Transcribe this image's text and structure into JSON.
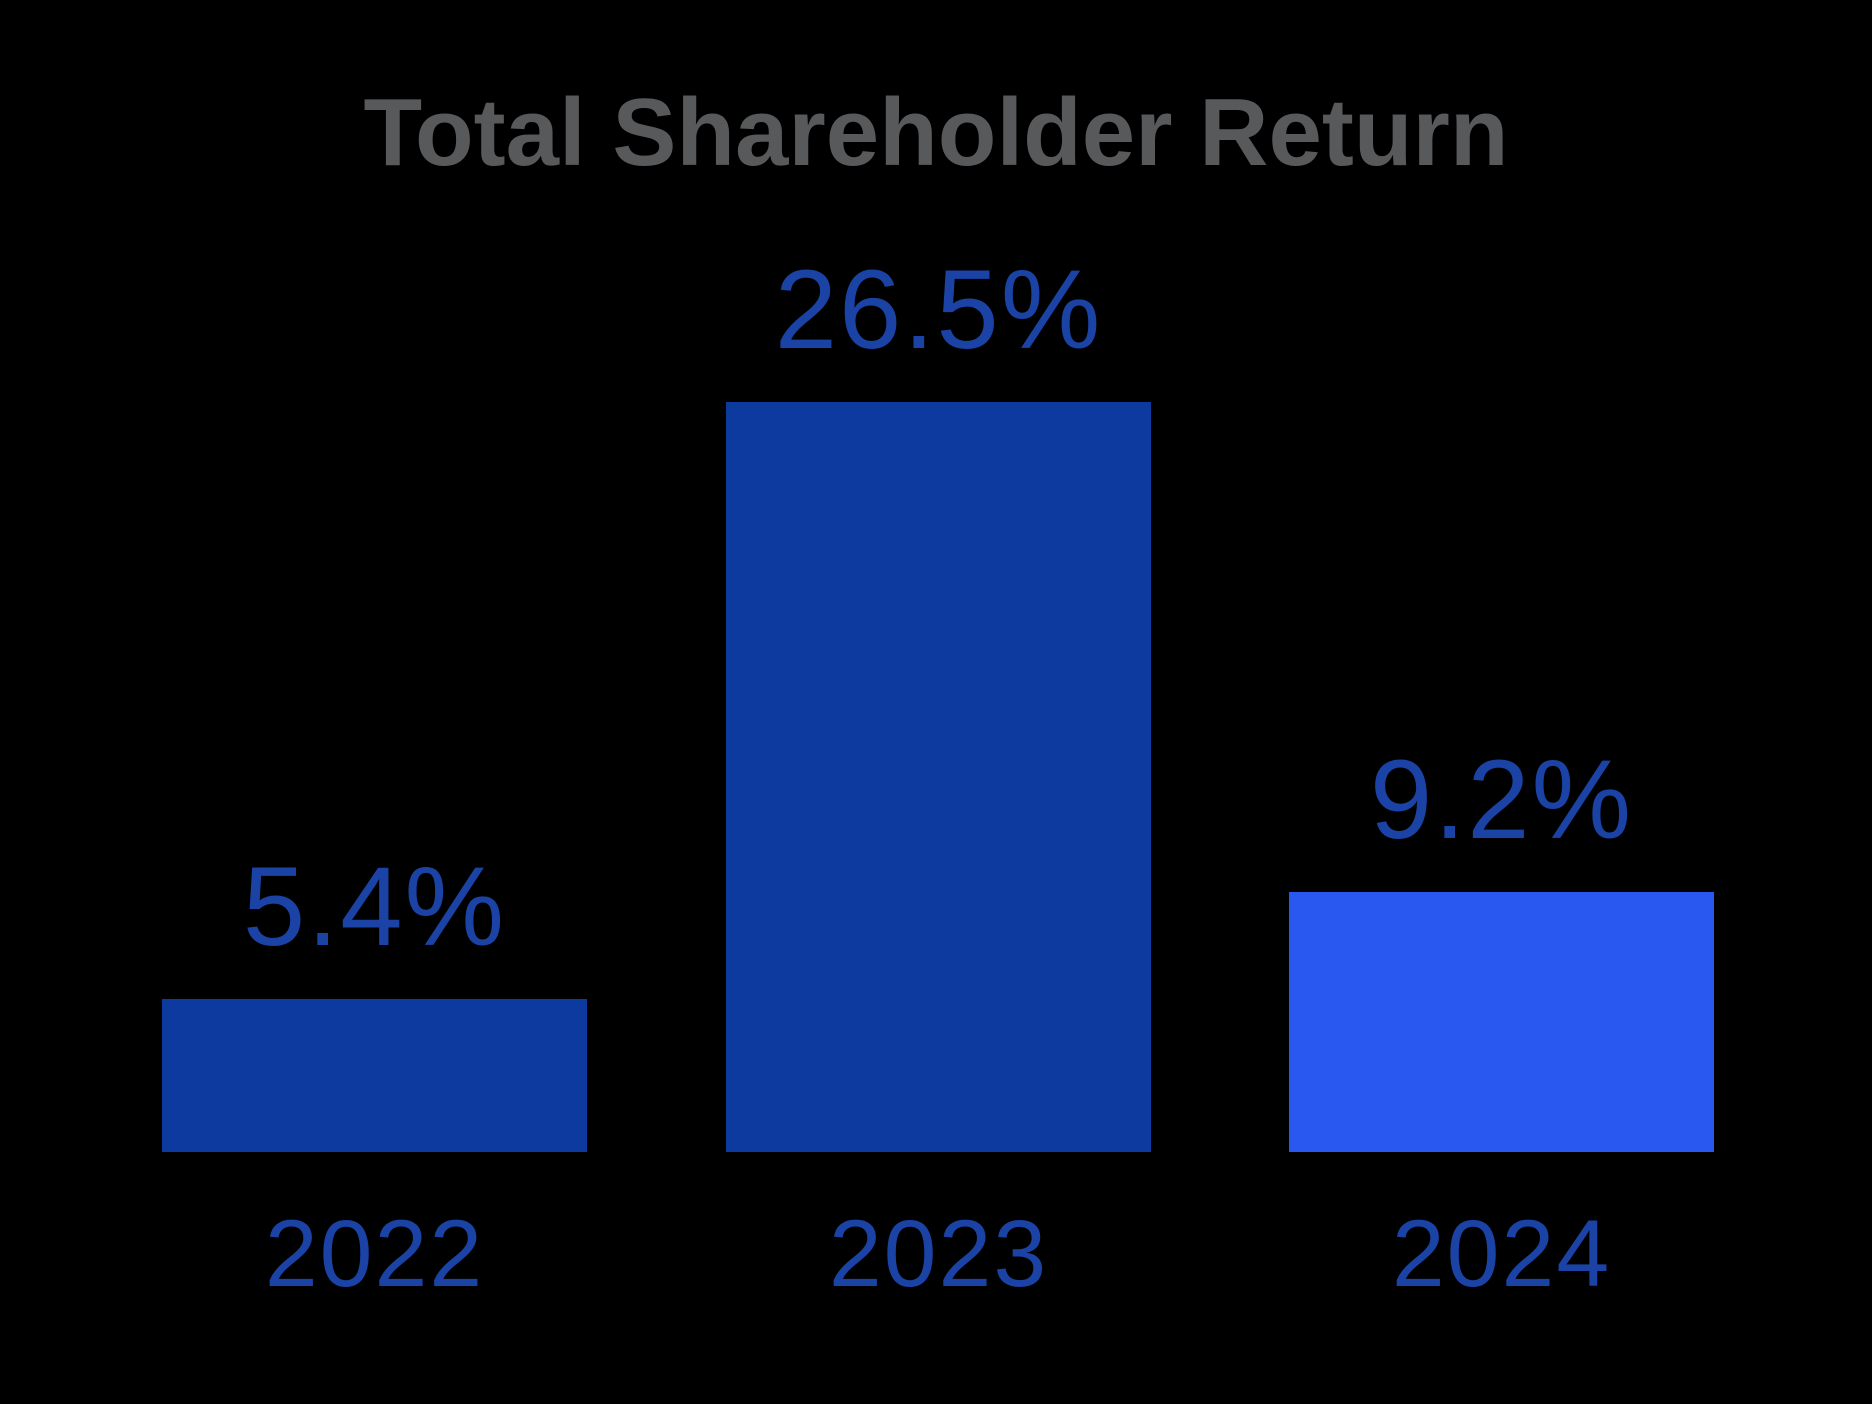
{
  "page": {
    "background_color": "#000000"
  },
  "chart_data": {
    "type": "bar",
    "title": "Total Shareholder Return",
    "title_color": "#58595b",
    "categories": [
      "2022",
      "2023",
      "2024"
    ],
    "values": [
      5.4,
      26.5,
      9.2
    ],
    "value_labels": [
      "5.4%",
      "26.5%",
      "9.2%"
    ],
    "bar_colors": [
      "#0d3a9e",
      "#0d3a9e",
      "#2858ef"
    ],
    "label_color": "#1a43a5",
    "xlabel": "",
    "ylabel": "",
    "ylim": [
      0,
      28
    ],
    "grid": false,
    "legend": false,
    "axes_visible": false,
    "value_label_position": "above-bar",
    "category_label_position": "below-bar"
  }
}
